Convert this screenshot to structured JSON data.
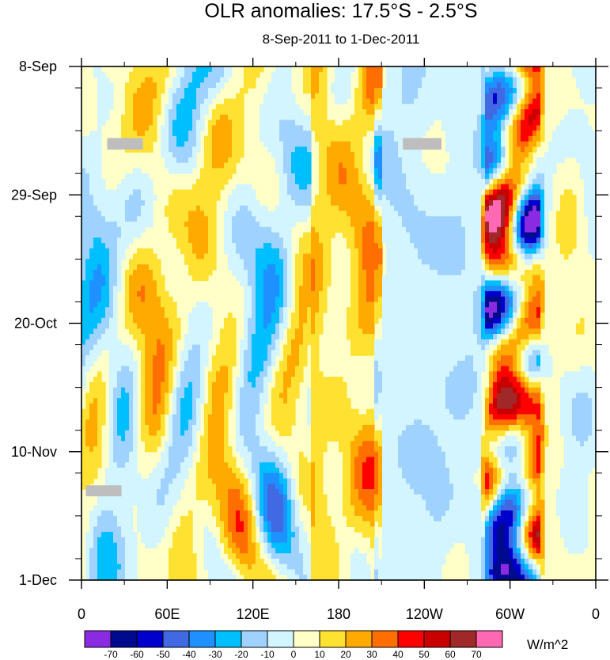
{
  "chart_data": {
    "type": "heatmap",
    "title": "OLR anomalies: 17.5°S - 2.5°S",
    "subtitle": "8-Sep-2011 to 1-Dec-2011",
    "xlabel": "",
    "ylabel": "",
    "x_ticks": [
      "0",
      "60E",
      "120E",
      "180",
      "120W",
      "60W",
      "0"
    ],
    "x_tick_values": [
      0,
      60,
      120,
      180,
      240,
      300,
      360
    ],
    "y_ticks": [
      "8-Sep",
      "29-Sep",
      "20-Oct",
      "10-Nov",
      "1-Dec"
    ],
    "y_tick_days": [
      0,
      21,
      42,
      63,
      84
    ],
    "xlim": [
      0,
      360
    ],
    "ylim_days": [
      0,
      84
    ],
    "colorbar": {
      "unit": "W/m^2",
      "labels": [
        "-70",
        "-60",
        "-50",
        "-40",
        "-30",
        "-20",
        "-10",
        "0",
        "10",
        "20",
        "30",
        "40",
        "50",
        "60",
        "70"
      ],
      "colors": [
        "#8a2be2",
        "#000a8c",
        "#0000cd",
        "#4169e1",
        "#1e90ff",
        "#00bfff",
        "#a0d2ff",
        "#d2f5ff",
        "#ffffc8",
        "#ffe132",
        "#ffaa00",
        "#ff6e00",
        "#ff0000",
        "#c80000",
        "#a02828",
        "#ff69b4"
      ]
    },
    "missing_color": "#bebebe",
    "features": [
      {
        "name": "persistent positive anomaly near dateline",
        "lon_range": [
          160,
          200
        ],
        "level": 20
      },
      {
        "name": "weak negative anomaly eastern Pacific",
        "lon_range": [
          215,
          275
        ],
        "level": -10
      },
      {
        "name": "alternating strong anomalies South America",
        "lon_range": [
          285,
          320
        ],
        "level": 40
      }
    ]
  }
}
